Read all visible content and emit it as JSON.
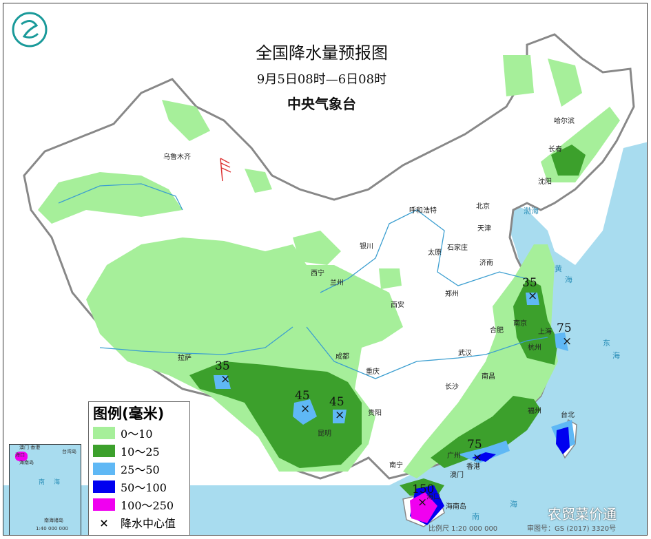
{
  "header": {
    "title": "全国降水量预报图",
    "period": "9月5日08时—6日08时",
    "issuer": "中央气象台"
  },
  "legend": {
    "title": "图例(毫米)",
    "items": [
      {
        "label": "0～10",
        "color": "#a6ef9a"
      },
      {
        "label": "10～25",
        "color": "#3ca02c"
      },
      {
        "label": "25～50",
        "color": "#5fb8f5"
      },
      {
        "label": "50～100",
        "color": "#0000f0"
      },
      {
        "label": "100～250",
        "color": "#f000f0"
      }
    ],
    "center_symbol": "×",
    "center_label": "降水中心值"
  },
  "cities": [
    "乌鲁木齐",
    "哈尔滨",
    "长春",
    "沈阳",
    "呼和浩特",
    "北京",
    "天津",
    "银川",
    "石家庄",
    "太原",
    "济南",
    "西宁",
    "兰州",
    "郑州",
    "西安",
    "南京",
    "合肥",
    "上海",
    "杭州",
    "拉萨",
    "成都",
    "重庆",
    "武汉",
    "长沙",
    "南昌",
    "福州",
    "台北",
    "贵阳",
    "昆明",
    "南宁",
    "广州",
    "香港",
    "澳门",
    "海口",
    "海南岛"
  ],
  "rain_centers": [
    {
      "value": "35"
    },
    {
      "value": "75"
    },
    {
      "value": "35"
    },
    {
      "value": "45"
    },
    {
      "value": "45"
    },
    {
      "value": "75"
    },
    {
      "value": "150"
    }
  ],
  "seas": [
    "渤海",
    "黄",
    "海",
    "东",
    "海",
    "南",
    "海"
  ],
  "inset": {
    "labels": [
      "澳门 香港",
      "海口",
      "海南岛",
      "台湾岛",
      "南",
      "海",
      "南海诸岛",
      "1:40 000 000"
    ]
  },
  "footer": {
    "scale": "比例尺 1:20 000 000",
    "map_number": "审图号：GS (2017) 3320号"
  },
  "watermark": "农贸菜价通",
  "colors": {
    "sea": "#a8dcef",
    "land": "#ffffff",
    "border": "#888888"
  }
}
